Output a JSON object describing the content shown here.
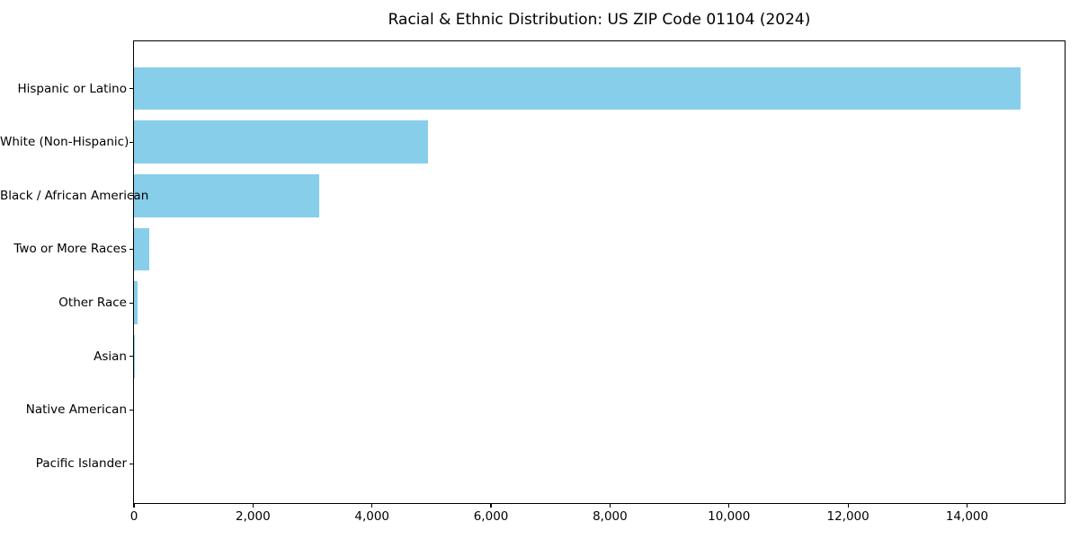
{
  "title": "Racial & Ethnic Distribution: US ZIP Code 01104 (2024)",
  "colors": {
    "bar": "#87CEEB",
    "axis": "#000000",
    "background": "#ffffff"
  },
  "chart_data": {
    "type": "bar",
    "orientation": "horizontal",
    "title": "Racial & Ethnic Distribution: US ZIP Code 01104 (2024)",
    "xlabel": "",
    "ylabel": "",
    "categories": [
      "Hispanic or Latino",
      "White (Non-Hispanic)",
      "Black / African American",
      "Two or More Races",
      "Other Race",
      "Asian",
      "Native American",
      "Pacific Islander"
    ],
    "values": [
      14900,
      4940,
      3120,
      260,
      60,
      15,
      0,
      0
    ],
    "xlim": [
      0,
      15640
    ],
    "xticks": [
      0,
      2000,
      4000,
      6000,
      8000,
      10000,
      12000,
      14000
    ],
    "xtick_labels": [
      "0",
      "2,000",
      "4,000",
      "6,000",
      "8,000",
      "10,000",
      "12,000",
      "14,000"
    ],
    "bar_color": "#87CEEB",
    "grid": false,
    "legend": null
  }
}
